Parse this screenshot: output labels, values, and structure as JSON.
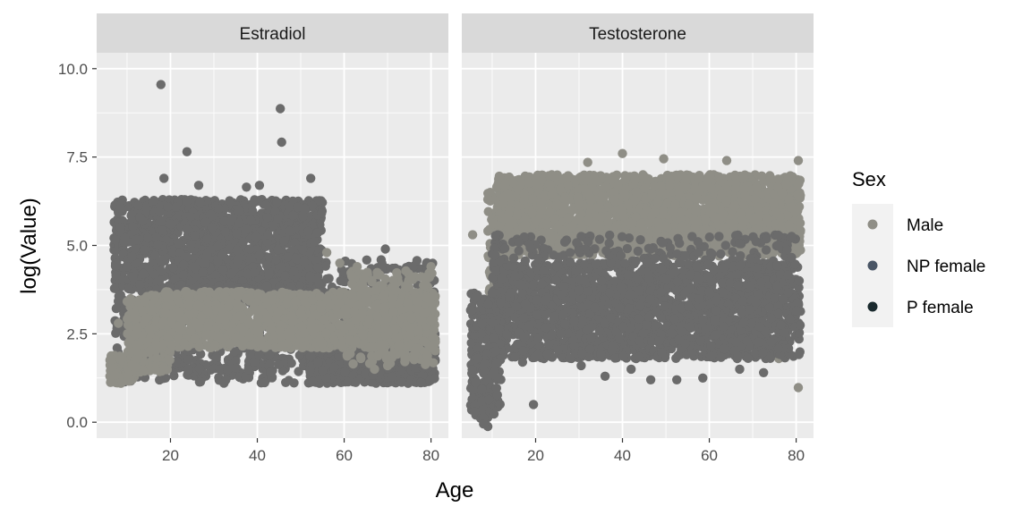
{
  "chart_data": {
    "type": "scatter",
    "xlabel": "Age",
    "ylabel": "log(Value)",
    "xlim": [
      3,
      84
    ],
    "ylim": [
      -0.45,
      10.45
    ],
    "x_ticks": [
      20,
      40,
      60,
      80
    ],
    "y_ticks": [
      0,
      2.5,
      5,
      7.5,
      10
    ],
    "x_tick_labels": [
      "20",
      "40",
      "60",
      "80"
    ],
    "y_tick_labels": [
      "0.0",
      "2.5",
      "5.0",
      "7.5",
      "10.0"
    ],
    "grid": true,
    "legend": {
      "title": "Sex",
      "placement": "right",
      "entries": [
        {
          "label": "Male",
          "color": "#8f8e86"
        },
        {
          "label": "NP female",
          "color": "#4a5666"
        },
        {
          "label": "P female",
          "color": "#1a2a2e"
        }
      ]
    },
    "facets": [
      {
        "label": "Estradiol",
        "series": [
          {
            "group": "NP female",
            "color": "#6b6b6b",
            "clusters": [
              {
                "x": [
                  7,
                  55
                ],
                "y": [
                  3.7,
                  6.3
                ],
                "n": 1500
              },
              {
                "x": [
                  7,
                  58
                ],
                "y": [
                  1.1,
                  3.9
                ],
                "n": 650
              },
              {
                "x": [
                  52,
                  81
                ],
                "y": [
                  1.1,
                  2.5
                ],
                "n": 900
              },
              {
                "x": [
                  52,
                  81
                ],
                "y": [
                  2.5,
                  4.6
                ],
                "n": 160
              }
            ],
            "outliers": [
              [
                17.8,
                9.55
              ],
              [
                45.3,
                8.87
              ],
              [
                45.6,
                7.92
              ],
              [
                23.8,
                7.65
              ],
              [
                52.3,
                6.9
              ],
              [
                18.5,
                6.9
              ],
              [
                40.5,
                6.7
              ],
              [
                26.5,
                6.7
              ],
              [
                37.5,
                6.65
              ],
              [
                69.5,
                4.9
              ],
              [
                10,
                4.4
              ],
              [
                8.5,
                3.6
              ],
              [
                73,
                2.9
              ]
            ]
          },
          {
            "group": "Male",
            "color": "#8f8e86",
            "clusters": [
              {
                "x": [
                  6,
                  12
                ],
                "y": [
                  1.1,
                  1.9
                ],
                "n": 120
              },
              {
                "x": [
                  10,
                  20
                ],
                "y": [
                  1.4,
                  3.6
                ],
                "n": 250
              },
              {
                "x": [
                  18,
                  81
                ],
                "y": [
                  2.1,
                  3.7
                ],
                "n": 1400
              },
              {
                "x": [
                  60,
                  81
                ],
                "y": [
                  1.6,
                  4.3
                ],
                "n": 250
              }
            ],
            "outliers": [
              [
                8,
                2.8
              ],
              [
                80,
                4.4
              ],
              [
                56,
                4.8
              ],
              [
                59,
                4.5
              ],
              [
                63,
                4.4
              ],
              [
                74,
                1.8
              ],
              [
                67,
                1.5
              ],
              [
                70,
                1.6
              ]
            ]
          }
        ]
      },
      {
        "label": "Testosterone",
        "series": [
          {
            "group": "Male",
            "color": "#8f8e86",
            "clusters": [
              {
                "x": [
                  11,
                  81
                ],
                "y": [
                  4.7,
                  7.0
                ],
                "n": 2600
              },
              {
                "x": [
                  9,
                  14
                ],
                "y": [
                  3.0,
                  6.5
                ],
                "n": 150
              }
            ],
            "outliers": [
              [
                40,
                7.6
              ],
              [
                49.5,
                7.45
              ],
              [
                32,
                7.35
              ],
              [
                64,
                7.4
              ],
              [
                80.5,
                7.4
              ],
              [
                9,
                6.3
              ],
              [
                5.5,
                5.3
              ],
              [
                7,
                1.7
              ],
              [
                80.5,
                0.98
              ],
              [
                76,
                1.8
              ],
              [
                6,
                0.6
              ]
            ]
          },
          {
            "group": "NP female",
            "color": "#6b6b6b",
            "clusters": [
              {
                "x": [
                  10,
                  81
                ],
                "y": [
                  1.8,
                  4.5
                ],
                "n": 2100
              },
              {
                "x": [
                  5,
                  12
                ],
                "y": [
                  0.1,
                  3.7
                ],
                "n": 250
              },
              {
                "x": [
                  10,
                  81
                ],
                "y": [
                  4.4,
                  5.3
                ],
                "n": 180
              }
            ],
            "outliers": [
              [
                9,
                -0.12
              ],
              [
                8,
                -0.05
              ],
              [
                19.5,
                0.5
              ],
              [
                6,
                0.3
              ],
              [
                46.5,
                1.2
              ],
              [
                52.5,
                1.2
              ],
              [
                72.5,
                1.4
              ],
              [
                67,
                1.5
              ],
              [
                36,
                1.3
              ],
              [
                30.5,
                1.6
              ],
              [
                17,
                1.7
              ],
              [
                42,
                1.5
              ],
              [
                58.5,
                1.25
              ]
            ]
          }
        ]
      }
    ]
  }
}
